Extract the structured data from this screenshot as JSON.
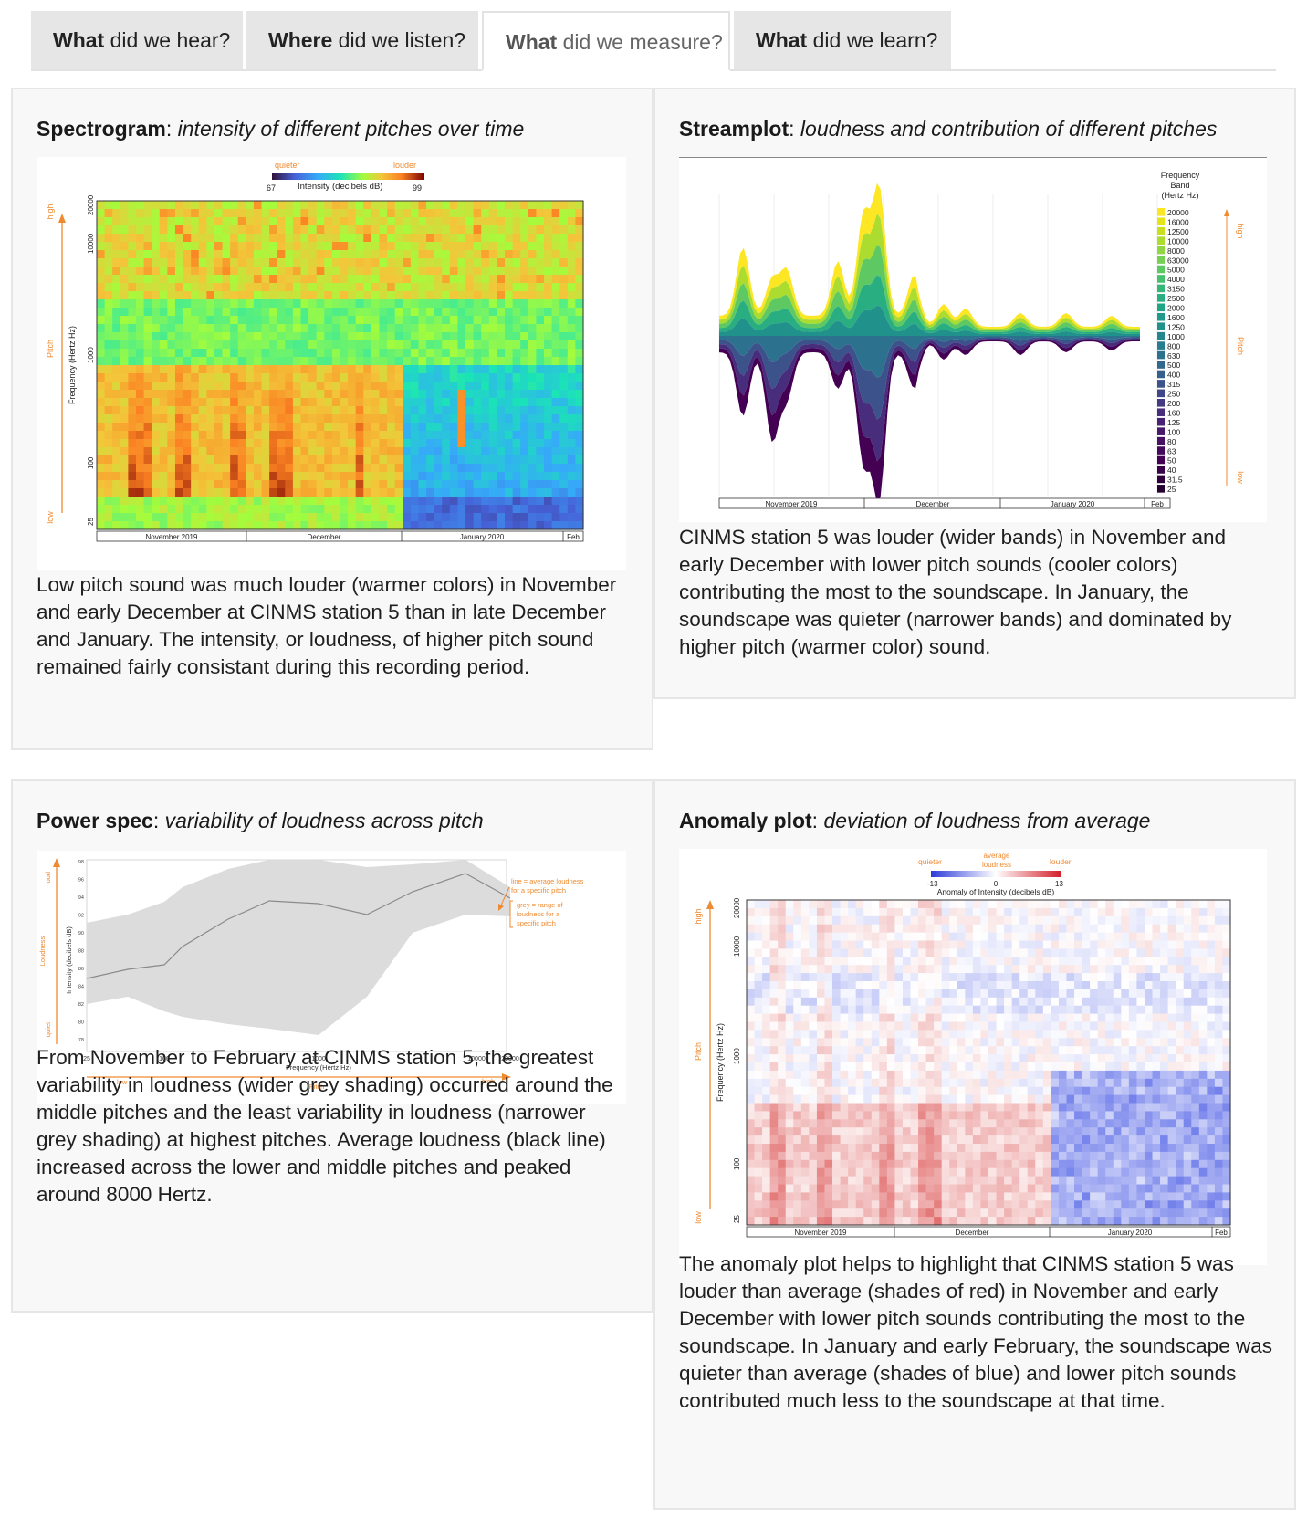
{
  "tabs": [
    {
      "bold": "What",
      "rest": " did we hear?"
    },
    {
      "bold": "Where",
      "rest": " did we listen?"
    },
    {
      "bold": "What",
      "rest": " did we measure?"
    },
    {
      "bold": "What",
      "rest": " did we learn?"
    }
  ],
  "spectrogram": {
    "title_bold": "Spectrogram",
    "title_italic": "intensity of different pitches over time",
    "legend_quieter": "quieter",
    "legend_louder": "louder",
    "legend_min": "67",
    "legend_max": "99",
    "legend_label": "Intensity (decibels dB)",
    "ylabel": "Frequency (Hertz Hz)",
    "pitch_label": "Pitch",
    "high_label": "high",
    "low_label": "low",
    "yticks": [
      "20000",
      "10000",
      "1000",
      "100",
      "25"
    ],
    "months": [
      "November 2019",
      "December",
      "January 2020",
      "Feb"
    ],
    "description": "Low pitch sound was much louder (warmer colors) in November and early December at CINMS station 5 than in late December and January. The intensity, or loudness, of higher pitch sound remained fairly consistant during this recording period."
  },
  "streamplot": {
    "title_bold": "Streamplot",
    "title_italic": "loudness and contribution of different pitches",
    "legend_title_1": "Frequency",
    "legend_title_2": "Band",
    "legend_title_3": "(Hertz Hz)",
    "bands": [
      "20000",
      "16000",
      "12500",
      "10000",
      "8000",
      "63000",
      "5000",
      "4000",
      "3150",
      "2500",
      "2000",
      "1600",
      "1250",
      "1000",
      "800",
      "630",
      "500",
      "400",
      "315",
      "250",
      "200",
      "160",
      "125",
      "100",
      "80",
      "63",
      "50",
      "40",
      "31.5",
      "25"
    ],
    "band_colors": [
      "#fde725",
      "#e5e419",
      "#c8e020",
      "#addc30",
      "#90d743",
      "#75d054",
      "#5ec962",
      "#48c16e",
      "#35b779",
      "#28ae80",
      "#20a486",
      "#1f9a8a",
      "#21918c",
      "#24878e",
      "#287d8e",
      "#2c728e",
      "#31688e",
      "#355f8d",
      "#3b528b",
      "#404688",
      "#443a83",
      "#472d7b",
      "#482173",
      "#48186a",
      "#471063",
      "#46085c",
      "#440154",
      "#3a0149",
      "#30003d",
      "#250030"
    ],
    "pitch_label": "Pitch",
    "high_label": "high",
    "low_label": "low",
    "months": [
      "November 2019",
      "December",
      "January 2020",
      "Feb"
    ],
    "description": "CINMS station 5 was louder (wider bands) in November and early December with lower pitch sounds (cooler colors) contributing the most to the soundscape. In January, the soundscape was quieter (narrower bands) and dominated by higher pitch (warmer color) sound."
  },
  "powerspec": {
    "title_bold": "Power spec",
    "title_italic": "variability of loudness across pitch",
    "ylabel": "Intensity (decibels dB)",
    "xlabel": "Frequency (Hertz Hz)",
    "loudness_label": "Loudness",
    "loud_label": "loud",
    "quiet_label": "quiet",
    "pitch_label": "Pitch",
    "low_label": "low",
    "high_label": "high",
    "xticks": [
      "25",
      "100",
      "1000",
      "10000",
      "20000"
    ],
    "yticks": [
      "98",
      "96",
      "94",
      "92",
      "90",
      "88",
      "86",
      "84",
      "82",
      "80",
      "78"
    ],
    "annotation_line": [
      "line = average loudness",
      "for a specific pitch"
    ],
    "annotation_grey": [
      "grey = range of",
      "loudness for a",
      "specific pitch"
    ],
    "description": "From November to February at CINMS station 5, the greatest variability in loudness (wider grey shading) occurred around the middle pitches and the least variability in loudness (narrower grey shading) at highest pitches. Average loudness (black line) increased across the lower and middle pitches and peaked around 8000 Hertz."
  },
  "anomaly": {
    "title_bold": "Anomaly plot",
    "title_italic": "deviation of loudness from average",
    "legend_quieter": "quieter",
    "legend_average": "average",
    "legend_average_2": "loudness",
    "legend_louder": "louder",
    "legend_min": "-13",
    "legend_mid": "0",
    "legend_max": "13",
    "legend_label": "Anomaly of Intensity (decibels dB)",
    "ylabel": "Frequency (Hertz Hz)",
    "pitch_label": "Pitch",
    "high_label": "high",
    "low_label": "low",
    "yticks": [
      "20000",
      "10000",
      "1000",
      "100",
      "25"
    ],
    "months": [
      "November 2019",
      "December",
      "January 2020",
      "Feb"
    ],
    "description": "The anomaly plot helps to highlight that CINMS station 5 was louder than average (shades of red) in November and early December with lower pitch sounds contributing the most to the soundscape. In January and early February, the soundscape was quieter than average (shades of blue) and lower pitch sounds contributed much less to the soundscape at that time."
  },
  "colors": {
    "orange": "#f08a30",
    "grey_band": "#dcdcdc"
  }
}
